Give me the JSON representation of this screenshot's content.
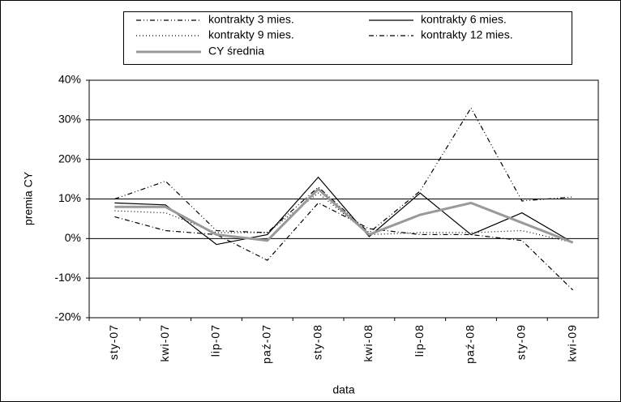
{
  "chart_data": {
    "type": "line",
    "categories": [
      "sty-07",
      "kwi-07",
      "lip-07",
      "paź-07",
      "sty-08",
      "kwi-08",
      "lip-08",
      "paź-08",
      "sty-09",
      "kwi-09"
    ],
    "series": [
      {
        "name": "kontrakty 3 mies.",
        "color": "#000000",
        "dash": "6,3,1,3,1,3",
        "values": [
          10,
          14.5,
          2,
          1.5,
          13,
          1.5,
          12,
          33,
          9.5,
          10.5
        ]
      },
      {
        "name": "kontrakty 6 mies.",
        "color": "#000000",
        "dash": "none",
        "values": [
          9,
          8.5,
          -1.5,
          1,
          15.5,
          0.5,
          11.5,
          1,
          6.5,
          -1
        ]
      },
      {
        "name": "kontrakty 9 mies.",
        "color": "#000000",
        "dash": "1,3",
        "values": [
          7,
          6.5,
          1.5,
          1.5,
          11.5,
          1,
          1.5,
          1.5,
          2,
          -1
        ]
      },
      {
        "name": "kontrakty 12 mies.",
        "color": "#000000",
        "dash": "6,3,1,3",
        "values": [
          5.5,
          2,
          1,
          -5.5,
          9,
          2.5,
          1,
          1,
          -0.5,
          -13
        ]
      },
      {
        "name": "CY średnia",
        "color": "#999999",
        "dash": "none",
        "width": 3,
        "values": [
          8,
          8,
          1,
          -0.5,
          12.5,
          1,
          6,
          9,
          4,
          -1
        ]
      }
    ],
    "ylim": [
      -20,
      40
    ],
    "yticks": [
      {
        "value": -20,
        "label": "-20%"
      },
      {
        "value": -10,
        "label": "-10%"
      },
      {
        "value": 0,
        "label": "0%"
      },
      {
        "value": 10,
        "label": "10%"
      },
      {
        "value": 20,
        "label": "20%"
      },
      {
        "value": 30,
        "label": "30%"
      },
      {
        "value": 40,
        "label": "40%"
      }
    ],
    "y_label": "premia CY",
    "x_label": "data",
    "grid": true
  }
}
